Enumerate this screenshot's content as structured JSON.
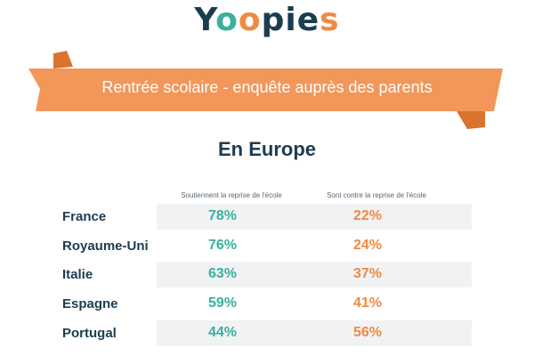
{
  "brand": {
    "logo_text": "Yoopies",
    "accent_green": "#3ab09e",
    "accent_orange": "#f08a43",
    "navy": "#1c3c50"
  },
  "banner": {
    "title": "Rentrée scolaire - enquête auprès des parents"
  },
  "chart_data": {
    "type": "table",
    "title": "En Europe",
    "columns": [
      "Soutiennent la reprise de l'école",
      "Sont contre la reprise de l'école"
    ],
    "rows": [
      {
        "country": "France",
        "support": "78%",
        "against": "22%"
      },
      {
        "country": "Royaume-Uni",
        "support": "76%",
        "against": "24%"
      },
      {
        "country": "Italie",
        "support": "63%",
        "against": "37%"
      },
      {
        "country": "Espagne",
        "support": "59%",
        "against": "41%"
      },
      {
        "country": "Portugal",
        "support": "44%",
        "against": "56%"
      }
    ]
  }
}
